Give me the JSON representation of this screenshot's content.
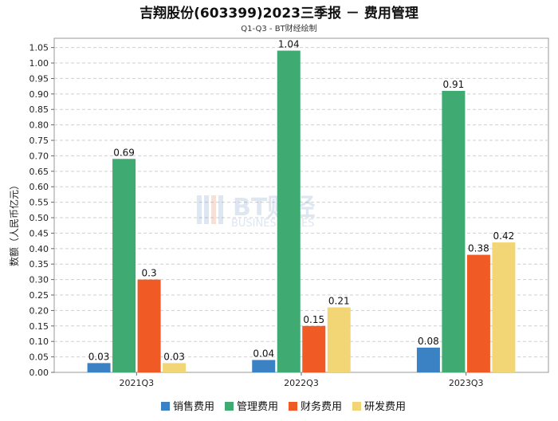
{
  "chart_data": {
    "type": "bar",
    "title": "吉翔股份(603399)2023三季报 － 费用管理",
    "subtitle": "Q1-Q3 - BT财经绘制",
    "ylabel": "数额（人民币亿元）",
    "xlabel": "",
    "categories": [
      "2021Q3",
      "2022Q3",
      "2023Q3"
    ],
    "series": [
      {
        "name": "销售费用",
        "color": "#3b82c4",
        "values": [
          0.03,
          0.04,
          0.08
        ],
        "labels": [
          "0.03",
          "0.04",
          "0.08"
        ]
      },
      {
        "name": "管理费用",
        "color": "#3faa72",
        "values": [
          0.69,
          1.04,
          0.91
        ],
        "labels": [
          "0.69",
          "1.04",
          "0.91"
        ]
      },
      {
        "name": "财务费用",
        "color": "#f05a24",
        "values": [
          0.3,
          0.15,
          0.38
        ],
        "labels": [
          "0.3",
          "0.15",
          "0.38"
        ]
      },
      {
        "name": "研发费用",
        "color": "#f2d675",
        "values": [
          0.03,
          0.21,
          0.42
        ],
        "labels": [
          "0.03",
          "0.21",
          "0.42"
        ]
      }
    ],
    "ylim": [
      0,
      1.08
    ],
    "yticks": [
      "0.00",
      "0.05",
      "0.10",
      "0.15",
      "0.20",
      "0.25",
      "0.30",
      "0.35",
      "0.40",
      "0.45",
      "0.50",
      "0.55",
      "0.60",
      "0.65",
      "0.70",
      "0.75",
      "0.80",
      "0.85",
      "0.90",
      "0.95",
      "1.00",
      "1.05"
    ],
    "grid": true,
    "legend_position": "bottom",
    "watermark": {
      "main": "BT财经",
      "sub": "BUSINESSTIMES"
    }
  }
}
